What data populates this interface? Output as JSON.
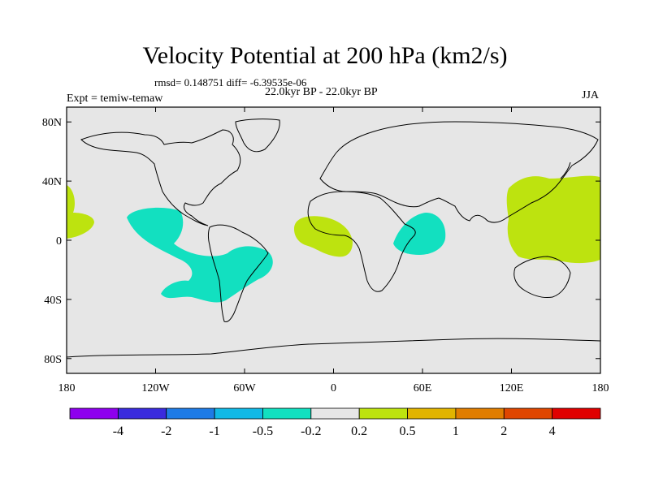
{
  "title": "Velocity Potential at 200 hPa (km2/s)",
  "stats": "rmsd= 0.148751  diff= -6.39535e-06",
  "experiment_label": "Expt = temiw-temaw",
  "period_label": "22.0kyr BP - 22.0kyr BP",
  "season": "JJA",
  "chart_data": {
    "type": "map",
    "projection": "cylindrical-equidistant",
    "lon_range": [
      -180,
      180
    ],
    "lat_range": [
      -90,
      90
    ],
    "lat_ticks": [
      {
        "value": 80,
        "label": "80N"
      },
      {
        "value": 40,
        "label": "40N"
      },
      {
        "value": 0,
        "label": "0"
      },
      {
        "value": -40,
        "label": "40S"
      },
      {
        "value": -80,
        "label": "80S"
      }
    ],
    "lon_ticks": [
      {
        "value": -180,
        "label": "180"
      },
      {
        "value": -120,
        "label": "120W"
      },
      {
        "value": -60,
        "label": "60W"
      },
      {
        "value": 0,
        "label": "0"
      },
      {
        "value": 60,
        "label": "60E"
      },
      {
        "value": 120,
        "label": "120E"
      },
      {
        "value": 180,
        "label": "180"
      }
    ],
    "colorbar": {
      "colors": [
        "#8e00ee",
        "#3a2bde",
        "#1e7be6",
        "#11b9e6",
        "#12e0c0",
        "#e6e6e6",
        "#bde30f",
        "#e1b400",
        "#e07d00",
        "#df4600",
        "#e00000"
      ],
      "labels": [
        "-4",
        "-2",
        "-1",
        "-0.5",
        "-0.2",
        "0.2",
        "0.5",
        "1",
        "2",
        "4"
      ]
    },
    "regions": [
      {
        "name": "east-pacific-negative",
        "level": "-0.5 to -0.2",
        "color": "#12e0c0"
      },
      {
        "name": "south-atlantic-negative",
        "level": "-0.5 to -0.2",
        "color": "#12e0c0"
      },
      {
        "name": "arabian-sea-negative",
        "level": "-0.5 to -0.2",
        "color": "#12e0c0"
      },
      {
        "name": "west-pacific-positive",
        "level": "0.2 to 0.5",
        "color": "#bde30f"
      },
      {
        "name": "west-africa-positive",
        "level": "0.2 to 0.5",
        "color": "#bde30f"
      },
      {
        "name": "central-pacific-positive",
        "level": "0.2 to 0.5",
        "color": "#bde30f"
      }
    ]
  }
}
